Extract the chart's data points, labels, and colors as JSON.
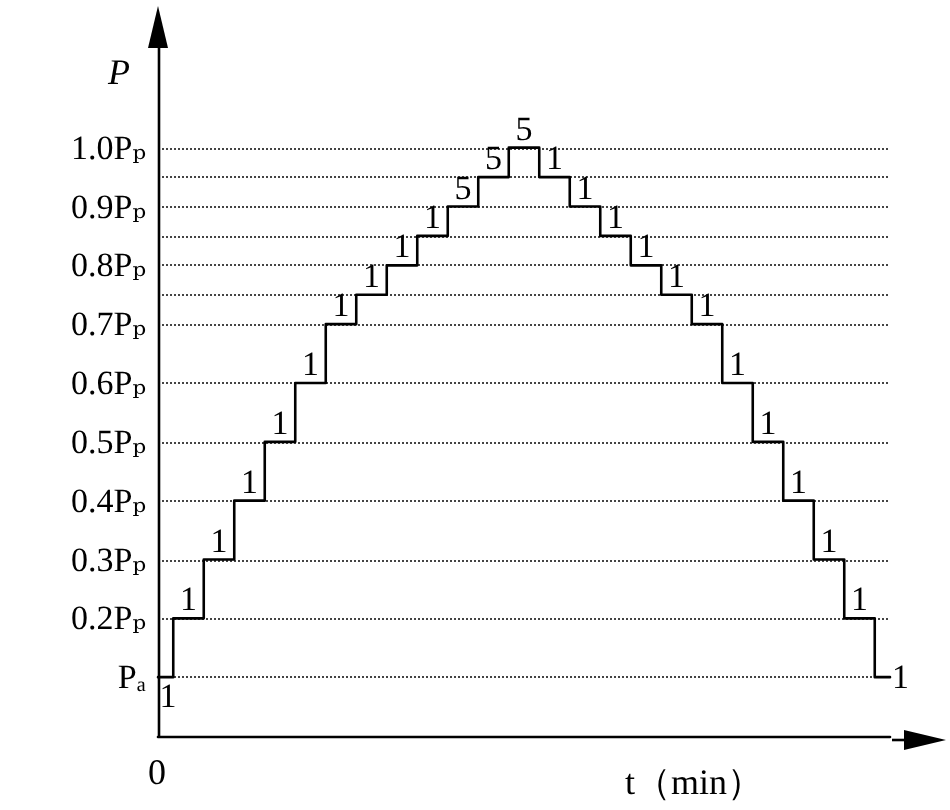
{
  "chart_data": {
    "type": "step",
    "xlabel": "t（min）",
    "ylabel": "P",
    "categories": [
      null,
      null,
      null,
      null,
      null,
      null,
      null,
      null,
      null,
      null,
      null,
      null,
      null,
      null,
      null,
      null,
      null,
      null,
      null,
      null,
      null,
      null,
      null,
      null,
      null
    ],
    "series": [
      {
        "color": "#000000",
        "values": [
          0.1,
          0.2,
          0.3,
          0.4,
          0.5,
          0.6,
          0.7,
          0.75,
          0.8,
          0.85,
          0.9,
          0.95,
          1.0,
          0.95,
          0.9,
          0.85,
          0.8,
          0.75,
          0.7,
          0.6,
          0.5,
          0.4,
          0.3,
          0.2,
          0.1
        ]
      }
    ],
    "ylim": [
      0,
      1.2
    ],
    "yticks": [
      {
        "value": 0.1,
        "label": "Pₐ"
      },
      {
        "value": 0.2,
        "label": "0.2Pₚ"
      },
      {
        "value": 0.3,
        "label": "0.3Pₚ"
      },
      {
        "value": 0.4,
        "label": "0.4Pₚ"
      },
      {
        "value": 0.5,
        "label": "0.5Pₚ"
      },
      {
        "value": 0.6,
        "label": "0.6Pₚ"
      },
      {
        "value": 0.7,
        "label": "0.7Pₚ"
      },
      {
        "value": 0.75,
        "label": null
      },
      {
        "value": 0.8,
        "label": "0.8Pₚ"
      },
      {
        "value": 0.85,
        "label": null
      },
      {
        "value": 0.9,
        "label": "0.9Pₚ"
      },
      {
        "value": 0.95,
        "label": null
      },
      {
        "value": 1.0,
        "label": "1.0Pₚ"
      }
    ],
    "grid": "y",
    "marker": "none",
    "line_style": "solid",
    "annotations": [
      "0",
      "1",
      "1",
      "1",
      "1",
      "1",
      "1",
      "1",
      "1",
      "1",
      "1",
      "5",
      "5",
      "5",
      "1",
      "1",
      "1",
      "1",
      "1",
      "1",
      "1",
      "1",
      "1",
      "1",
      "1",
      "1"
    ]
  }
}
